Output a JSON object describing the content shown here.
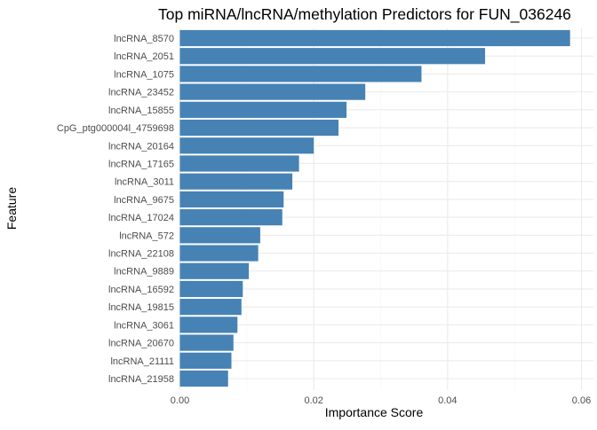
{
  "chart_data": {
    "type": "bar",
    "orientation": "horizontal",
    "title": "Top miRNA/lncRNA/methylation Predictors for FUN_036246",
    "xlabel": "Importance Score",
    "ylabel": "Feature",
    "xlim": [
      0,
      0.06
    ],
    "x_ticks": [
      0,
      0.02,
      0.04,
      0.06
    ],
    "x_tick_labels": [
      "0.00",
      "0.02",
      "0.04",
      "0.06"
    ],
    "grid": true,
    "bar_color": "#4682b4",
    "categories": [
      "lncRNA_8570",
      "lncRNA_2051",
      "lncRNA_1075",
      "lncRNA_23452",
      "lncRNA_15855",
      "CpG_ptg000004l_4759698",
      "lncRNA_20164",
      "lncRNA_17165",
      "lncRNA_3011",
      "lncRNA_9675",
      "lncRNA_17024",
      "lncRNA_572",
      "lncRNA_22108",
      "lncRNA_9889",
      "lncRNA_16592",
      "lncRNA_19815",
      "lncRNA_3061",
      "lncRNA_20670",
      "lncRNA_21111",
      "lncRNA_21958"
    ],
    "values": [
      0.0583,
      0.0456,
      0.0361,
      0.0277,
      0.0249,
      0.0237,
      0.02,
      0.0178,
      0.0168,
      0.0155,
      0.0153,
      0.012,
      0.0117,
      0.0103,
      0.0094,
      0.0092,
      0.0086,
      0.008,
      0.0077,
      0.0072
    ]
  }
}
